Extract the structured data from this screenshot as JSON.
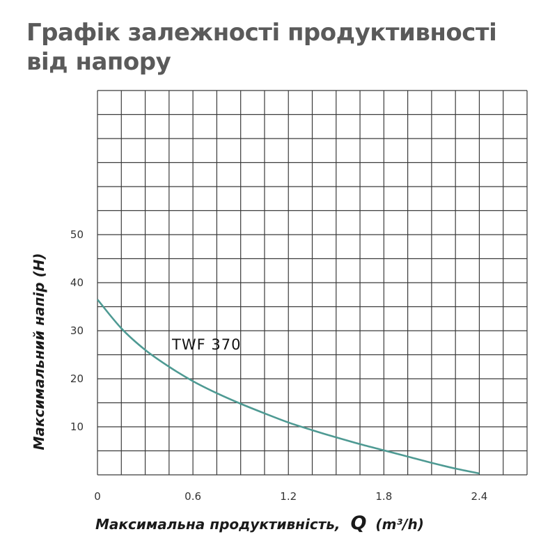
{
  "page": {
    "title": "Графік залежності продуктивності від напору"
  },
  "chart_data": {
    "type": "line",
    "title": "Графік залежності продуктивності від напору",
    "xlabel": "Максимальна продуктивність,",
    "xlabel_symbol": "Q",
    "xlabel_unit": "(m³/h)",
    "ylabel": "Максимальний напір (H)",
    "xlim": [
      0,
      2.7
    ],
    "ylim": [
      0,
      80
    ],
    "x_ticks": [
      0,
      0.6,
      1.2,
      1.8,
      2.4
    ],
    "x_tick_labels": [
      "0",
      "0.6",
      "1.2",
      "1.8",
      "2.4"
    ],
    "y_ticks": [
      10,
      20,
      30,
      40,
      50
    ],
    "y_tick_labels": [
      "10",
      "20",
      "30",
      "40",
      "50"
    ],
    "grid": true,
    "grid_x_step": 0.15,
    "grid_y_step": 5,
    "series": [
      {
        "name": "TWF 370",
        "color": "#4e9a93",
        "x": [
          0,
          0.15,
          0.3,
          0.45,
          0.6,
          0.75,
          0.9,
          1.05,
          1.2,
          1.35,
          1.5,
          1.65,
          1.8,
          1.95,
          2.1,
          2.25,
          2.4
        ],
        "y": [
          36.5,
          30.5,
          26,
          22.5,
          19.5,
          17,
          14.8,
          12.8,
          10.9,
          9.3,
          7.8,
          6.4,
          5.1,
          3.8,
          2.5,
          1.3,
          0.3
        ]
      }
    ]
  }
}
